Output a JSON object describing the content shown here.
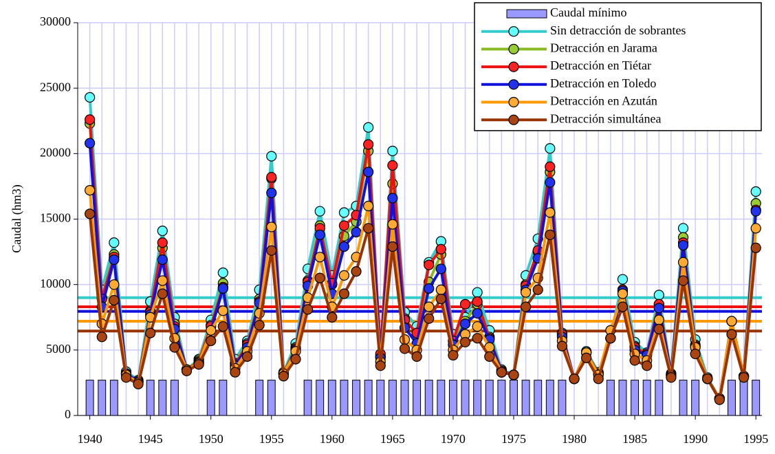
{
  "chart_data": {
    "type": "line",
    "ylabel": "Caudal (hm3)",
    "x": [
      1940,
      1941,
      1942,
      1943,
      1944,
      1945,
      1946,
      1947,
      1948,
      1949,
      1950,
      1951,
      1952,
      1953,
      1954,
      1955,
      1956,
      1957,
      1958,
      1959,
      1960,
      1961,
      1962,
      1963,
      1964,
      1965,
      1966,
      1967,
      1968,
      1969,
      1970,
      1971,
      1972,
      1973,
      1974,
      1975,
      1976,
      1977,
      1978,
      1979,
      1980,
      1981,
      1982,
      1983,
      1984,
      1985,
      1986,
      1987,
      1988,
      1989,
      1990,
      1991,
      1992,
      1993,
      1994,
      1995
    ],
    "xlim": [
      1939,
      1995.5
    ],
    "xticks": [
      1940,
      1945,
      1950,
      1955,
      1960,
      1965,
      1970,
      1975,
      1980,
      1985,
      1990,
      1995
    ],
    "ylim": [
      0,
      30000
    ],
    "yticks": [
      0,
      5000,
      10000,
      15000,
      20000,
      25000,
      30000
    ],
    "grid": true,
    "series": [
      {
        "name": "Caudal mínimo",
        "type": "bar",
        "color": "#9999ff",
        "values": [
          2700,
          2700,
          2700,
          null,
          null,
          2700,
          2700,
          2700,
          null,
          null,
          2700,
          2700,
          null,
          null,
          2700,
          2700,
          null,
          null,
          2700,
          2700,
          2700,
          2700,
          2700,
          2700,
          2700,
          2700,
          2700,
          2700,
          2700,
          2700,
          2700,
          2700,
          2700,
          2700,
          2700,
          2700,
          2700,
          2700,
          2700,
          2700,
          null,
          null,
          null,
          2700,
          2700,
          2700,
          2700,
          2700,
          null,
          2700,
          2700,
          null,
          null,
          2700,
          2700,
          2700
        ]
      },
      {
        "name": "Sin detracción de sobrantes",
        "color": "#33cccc",
        "marker": "#66ffff",
        "level": 9000,
        "values": [
          24300,
          9600,
          13200,
          3350,
          2700,
          8700,
          14100,
          7500,
          3500,
          4300,
          7300,
          10900,
          4300,
          5700,
          9600,
          19800,
          3300,
          5500,
          11200,
          15600,
          10700,
          15500,
          16000,
          22000,
          4500,
          20200,
          7900,
          6800,
          11700,
          13300,
          6200,
          7500,
          9400,
          6500,
          3500,
          3100,
          10700,
          13500,
          20400,
          6300,
          2800,
          4900,
          3300,
          5900,
          10400,
          5600,
          4800,
          9200,
          3200,
          14300,
          5800,
          2900,
          1300,
          7200,
          3000,
          17100
        ]
      },
      {
        "name": "Detracción en Jarama",
        "color": "#88bb22",
        "marker": "#99cc33",
        "level": 8300,
        "values": [
          22300,
          9000,
          12300,
          3200,
          2600,
          8000,
          12800,
          7000,
          3500,
          4200,
          6900,
          10100,
          4000,
          5500,
          8900,
          18100,
          3200,
          5200,
          10300,
          14500,
          10000,
          13700,
          14800,
          20200,
          4500,
          17700,
          7400,
          6200,
          10200,
          12300,
          5700,
          7200,
          8500,
          6000,
          3400,
          3100,
          10000,
          12500,
          18600,
          6100,
          2800,
          4800,
          3200,
          5900,
          9600,
          5300,
          4700,
          8500,
          3100,
          13600,
          5400,
          2800,
          1300,
          7200,
          3000,
          16200
        ]
      },
      {
        "name": "Detracción en Tiétar",
        "color": "#ee1111",
        "marker": "#ff2222",
        "level": 8300,
        "values": [
          22600,
          8900,
          12100,
          3200,
          2600,
          7900,
          13200,
          6800,
          3500,
          4100,
          6800,
          9800,
          3900,
          5400,
          8700,
          18200,
          3200,
          5100,
          10200,
          14300,
          10100,
          14500,
          15300,
          20700,
          4700,
          19100,
          7300,
          6300,
          11500,
          12700,
          5700,
          8500,
          8700,
          5900,
          3400,
          3100,
          9900,
          12600,
          19000,
          6200,
          2800,
          4800,
          3200,
          5900,
          9600,
          5200,
          4700,
          8500,
          3100,
          13200,
          5300,
          2800,
          1300,
          7200,
          3000,
          15700
        ]
      },
      {
        "name": "Detracción en Toledo",
        "color": "#1111dd",
        "marker": "#2233ee",
        "level": 7950,
        "values": [
          20800,
          8300,
          11900,
          3200,
          2600,
          7700,
          11900,
          6600,
          3500,
          4000,
          6500,
          9700,
          3800,
          5200,
          8600,
          17000,
          3200,
          5000,
          9900,
          13800,
          9300,
          12900,
          14000,
          18600,
          4400,
          16600,
          6700,
          5500,
          9700,
          11200,
          5400,
          7000,
          7800,
          5800,
          3300,
          3100,
          9600,
          12000,
          17800,
          6000,
          2800,
          4800,
          3200,
          5900,
          9500,
          5000,
          4600,
          8200,
          3100,
          13000,
          5200,
          2800,
          1300,
          7200,
          3000,
          15600
        ]
      },
      {
        "name": "Detracción en Azután",
        "color": "#ff9900",
        "marker": "#ffaa33",
        "level": 7200,
        "values": [
          17200,
          7000,
          10000,
          3100,
          2500,
          7500,
          10300,
          5900,
          3500,
          4000,
          6500,
          8000,
          3600,
          4900,
          7800,
          14400,
          3200,
          4900,
          9000,
          12100,
          8300,
          10700,
          12100,
          16000,
          4100,
          14600,
          5800,
          5000,
          8300,
          9600,
          5000,
          6200,
          6800,
          5200,
          3300,
          3100,
          9400,
          10500,
          15500,
          5700,
          2800,
          4800,
          3100,
          6500,
          9300,
          4700,
          4200,
          7300,
          3000,
          11700,
          5200,
          2800,
          1300,
          7200,
          3000,
          14300
        ]
      },
      {
        "name": "Detracción simultánea",
        "color": "#993300",
        "marker": "#aa4411",
        "level": 6450,
        "values": [
          15400,
          6000,
          8800,
          2900,
          2400,
          6300,
          9300,
          5200,
          3400,
          3900,
          5700,
          6800,
          3300,
          4500,
          6900,
          12600,
          3000,
          4300,
          8100,
          10500,
          7500,
          9300,
          11000,
          14300,
          3800,
          12900,
          5100,
          4500,
          7400,
          8900,
          4600,
          5600,
          5900,
          4500,
          3300,
          3100,
          8300,
          9600,
          13800,
          5300,
          2800,
          4400,
          2800,
          5900,
          8300,
          4200,
          3800,
          6600,
          2900,
          10300,
          4700,
          2800,
          1200,
          6200,
          2900,
          12800
        ]
      }
    ]
  }
}
